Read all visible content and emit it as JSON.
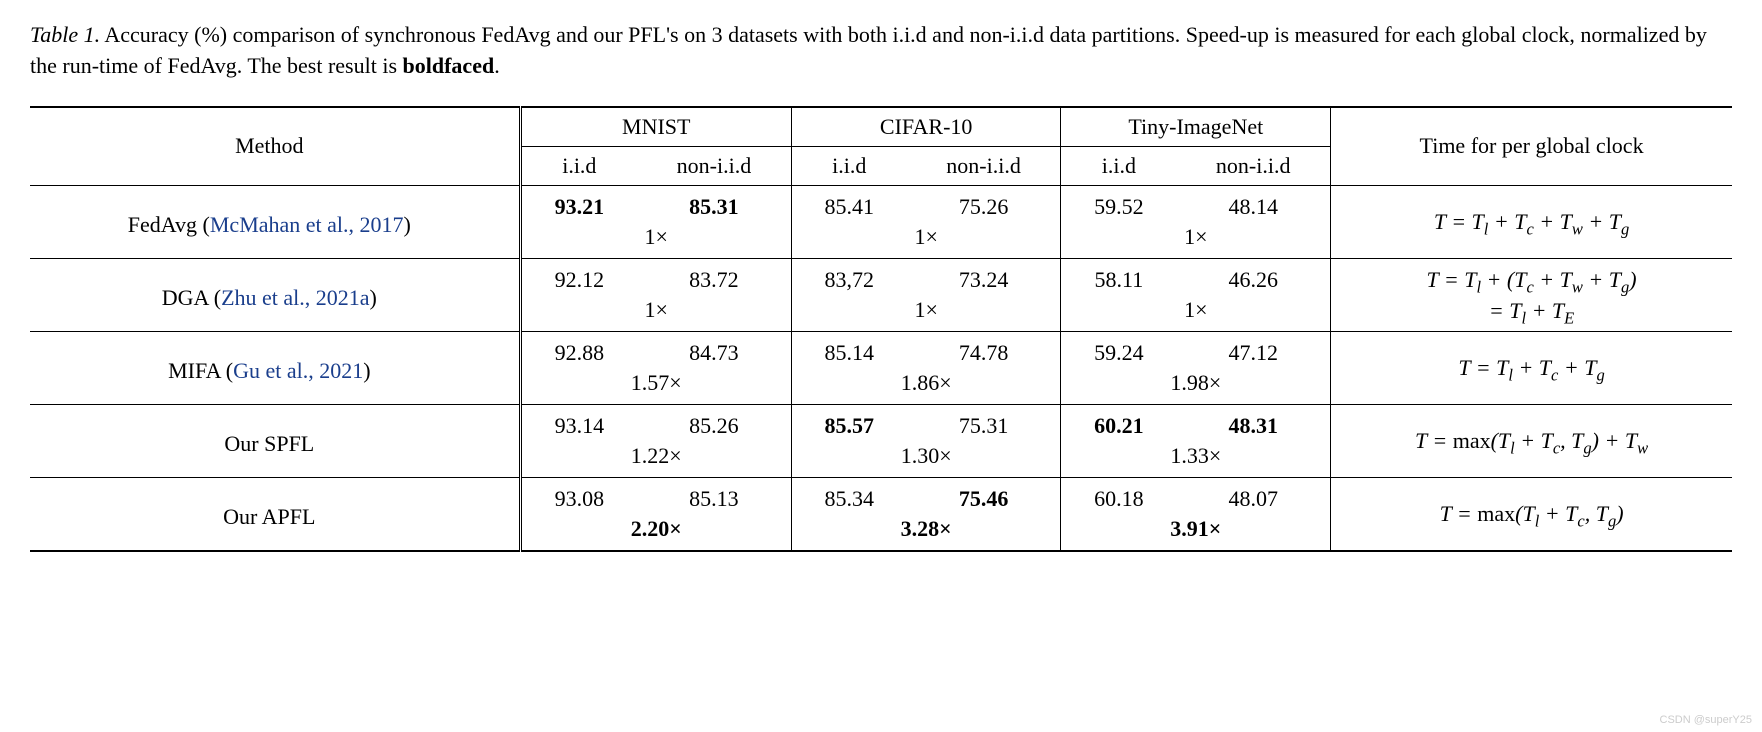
{
  "caption": {
    "label": "Table 1.",
    "text_part1": " Accuracy (%) comparison of synchronous FedAvg and our PFL's on 3 datasets with both i.i.d and non-i.i.d data partitions. Speed-up is measured for each global clock, normalized by the run-time of FedAvg. The best result is ",
    "bold_word": "boldfaced",
    "text_part2": "."
  },
  "headers": {
    "method": "Method",
    "datasets": [
      "MNIST",
      "CIFAR-10",
      "Tiny-ImageNet"
    ],
    "sub": [
      "i.i.d",
      "non-i.i.d"
    ],
    "time": "Time for per global clock"
  },
  "rows": [
    {
      "method_pre": "FedAvg (",
      "cite": "McMahan et al., 2017",
      "method_post": ")",
      "vals": [
        {
          "v": "93.21",
          "b": true
        },
        {
          "v": "85.31",
          "b": true
        },
        {
          "v": "85.41",
          "b": false
        },
        {
          "v": "75.26",
          "b": false
        },
        {
          "v": "59.52",
          "b": false
        },
        {
          "v": "48.14",
          "b": false
        }
      ],
      "speedups": [
        {
          "v": "1×",
          "b": false
        },
        {
          "v": "1×",
          "b": false
        },
        {
          "v": "1×",
          "b": false
        }
      ],
      "formula_html": "T = T<sub>l</sub> + T<sub>c</sub> + T<sub>w</sub> + T<sub>g</sub>"
    },
    {
      "method_pre": "DGA (",
      "cite": "Zhu et al., 2021a",
      "method_post": ")",
      "vals": [
        {
          "v": "92.12",
          "b": false
        },
        {
          "v": "83.72",
          "b": false
        },
        {
          "v": "83,72",
          "b": false
        },
        {
          "v": "73.24",
          "b": false
        },
        {
          "v": "58.11",
          "b": false
        },
        {
          "v": "46.26",
          "b": false
        }
      ],
      "speedups": [
        {
          "v": "1×",
          "b": false
        },
        {
          "v": "1×",
          "b": false
        },
        {
          "v": "1×",
          "b": false
        }
      ],
      "formula_html": "T = T<sub>l</sub> + (T<sub>c</sub> + T<sub>w</sub> + T<sub>g</sub>)<br>= T<sub>l</sub> + T<sub>E</sub>"
    },
    {
      "method_pre": "MIFA (",
      "cite": "Gu et al., 2021",
      "method_post": ")",
      "vals": [
        {
          "v": "92.88",
          "b": false
        },
        {
          "v": "84.73",
          "b": false
        },
        {
          "v": "85.14",
          "b": false
        },
        {
          "v": "74.78",
          "b": false
        },
        {
          "v": "59.24",
          "b": false
        },
        {
          "v": "47.12",
          "b": false
        }
      ],
      "speedups": [
        {
          "v": "1.57×",
          "b": false
        },
        {
          "v": "1.86×",
          "b": false
        },
        {
          "v": "1.98×",
          "b": false
        }
      ],
      "formula_html": "T = T<sub>l</sub> + T<sub>c</sub> + T<sub>g</sub>"
    },
    {
      "method_pre": "Our SPFL",
      "cite": "",
      "method_post": "",
      "vals": [
        {
          "v": "93.14",
          "b": false
        },
        {
          "v": "85.26",
          "b": false
        },
        {
          "v": "85.57",
          "b": true
        },
        {
          "v": "75.31",
          "b": false
        },
        {
          "v": "60.21",
          "b": true
        },
        {
          "v": "48.31",
          "b": true
        }
      ],
      "speedups": [
        {
          "v": "1.22×",
          "b": false
        },
        {
          "v": "1.30×",
          "b": false
        },
        {
          "v": "1.33×",
          "b": false
        }
      ],
      "formula_html": "T = max(T<sub>l</sub> + T<sub>c</sub>, T<sub>g</sub>) + T<sub>w</sub>"
    },
    {
      "method_pre": "Our APFL",
      "cite": "",
      "method_post": "",
      "vals": [
        {
          "v": "93.08",
          "b": false
        },
        {
          "v": "85.13",
          "b": false
        },
        {
          "v": "85.34",
          "b": false
        },
        {
          "v": "75.46",
          "b": true
        },
        {
          "v": "60.18",
          "b": false
        },
        {
          "v": "48.07",
          "b": false
        }
      ],
      "speedups": [
        {
          "v": "2.20×",
          "b": true
        },
        {
          "v": "3.28×",
          "b": true
        },
        {
          "v": "3.91×",
          "b": true
        }
      ],
      "formula_html": "T = max(T<sub>l</sub> + T<sub>c</sub>, T<sub>g</sub>)"
    }
  ],
  "watermark": "CSDN @superY25"
}
